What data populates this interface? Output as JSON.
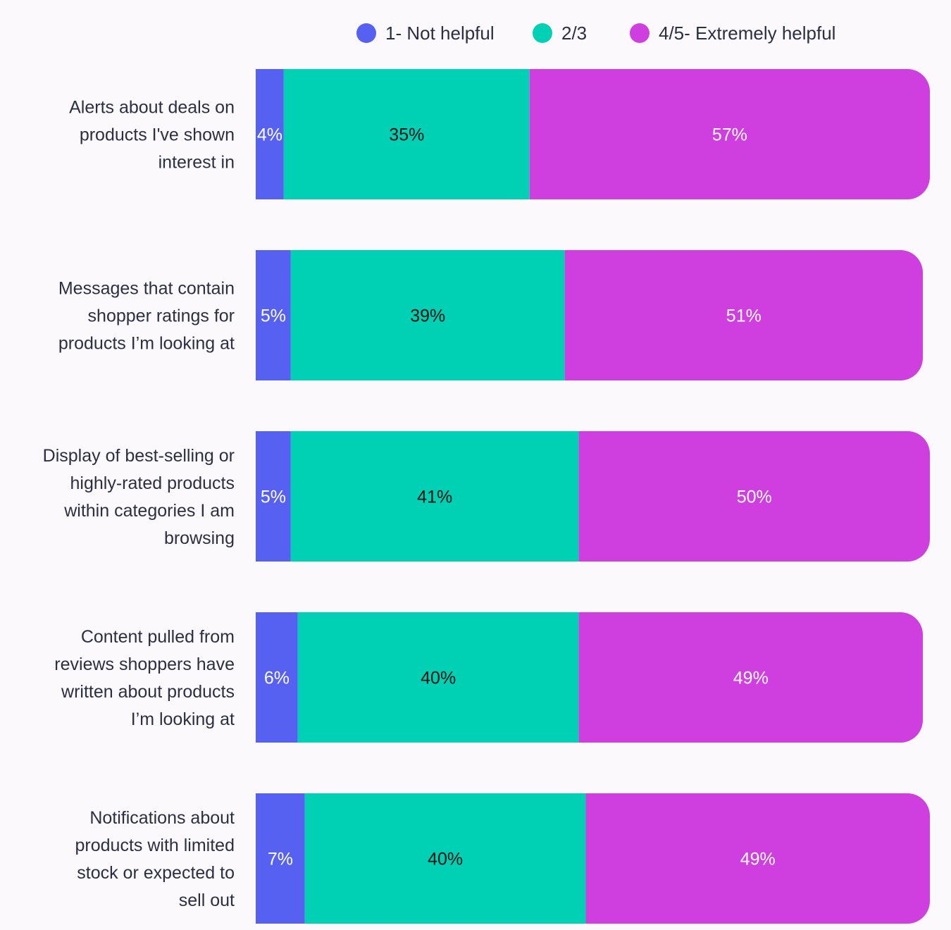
{
  "chart_data": {
    "type": "bar",
    "orientation": "horizontal",
    "stacked": true,
    "title": "",
    "xlabel": "",
    "ylabel": "",
    "legend_position": "top",
    "grid": false,
    "categories": [
      "Alerts about deals on products I've shown interest in",
      "Messages that contain shopper ratings for products I’m looking at",
      "Display of best-selling or highly-rated products within categories I am browsing",
      "Content pulled from reviews shoppers have written about products I’m looking at",
      "Notifications about products with limited stock or expected to sell out"
    ],
    "category_lines": [
      [
        "Alerts about deals on",
        "products I've shown",
        "interest in"
      ],
      [
        "Messages that contain",
        "shopper ratings for",
        "products I’m looking at"
      ],
      [
        "Display of best-selling or",
        "highly-rated products",
        "within categories I am",
        "browsing"
      ],
      [
        "Content pulled from",
        "reviews shoppers have",
        "written about products",
        "I’m looking at"
      ],
      [
        "Notifications about",
        "products with limited",
        "stock or expected to",
        "sell out"
      ]
    ],
    "series": [
      {
        "name": "1- Not helpful",
        "color": "#5661f2",
        "label_color": "#ffffff",
        "values": [
          4,
          5,
          5,
          6,
          7
        ],
        "labels": [
          "4%",
          "5%",
          "5%",
          "6%",
          "7%"
        ]
      },
      {
        "name": "2/3",
        "color": "#00d1b4",
        "label_color": "#111111",
        "values": [
          35,
          39,
          41,
          40,
          40
        ],
        "labels": [
          "35%",
          "39%",
          "41%",
          "40%",
          "40%"
        ]
      },
      {
        "name": "4/5- Extremely helpful",
        "color": "#cf3ede",
        "label_color": "#ffffff",
        "values": [
          57,
          51,
          50,
          49,
          49
        ],
        "labels": [
          "57%",
          "51%",
          "50%",
          "49%",
          "49%"
        ]
      }
    ],
    "xlim": [
      0,
      96
    ]
  }
}
